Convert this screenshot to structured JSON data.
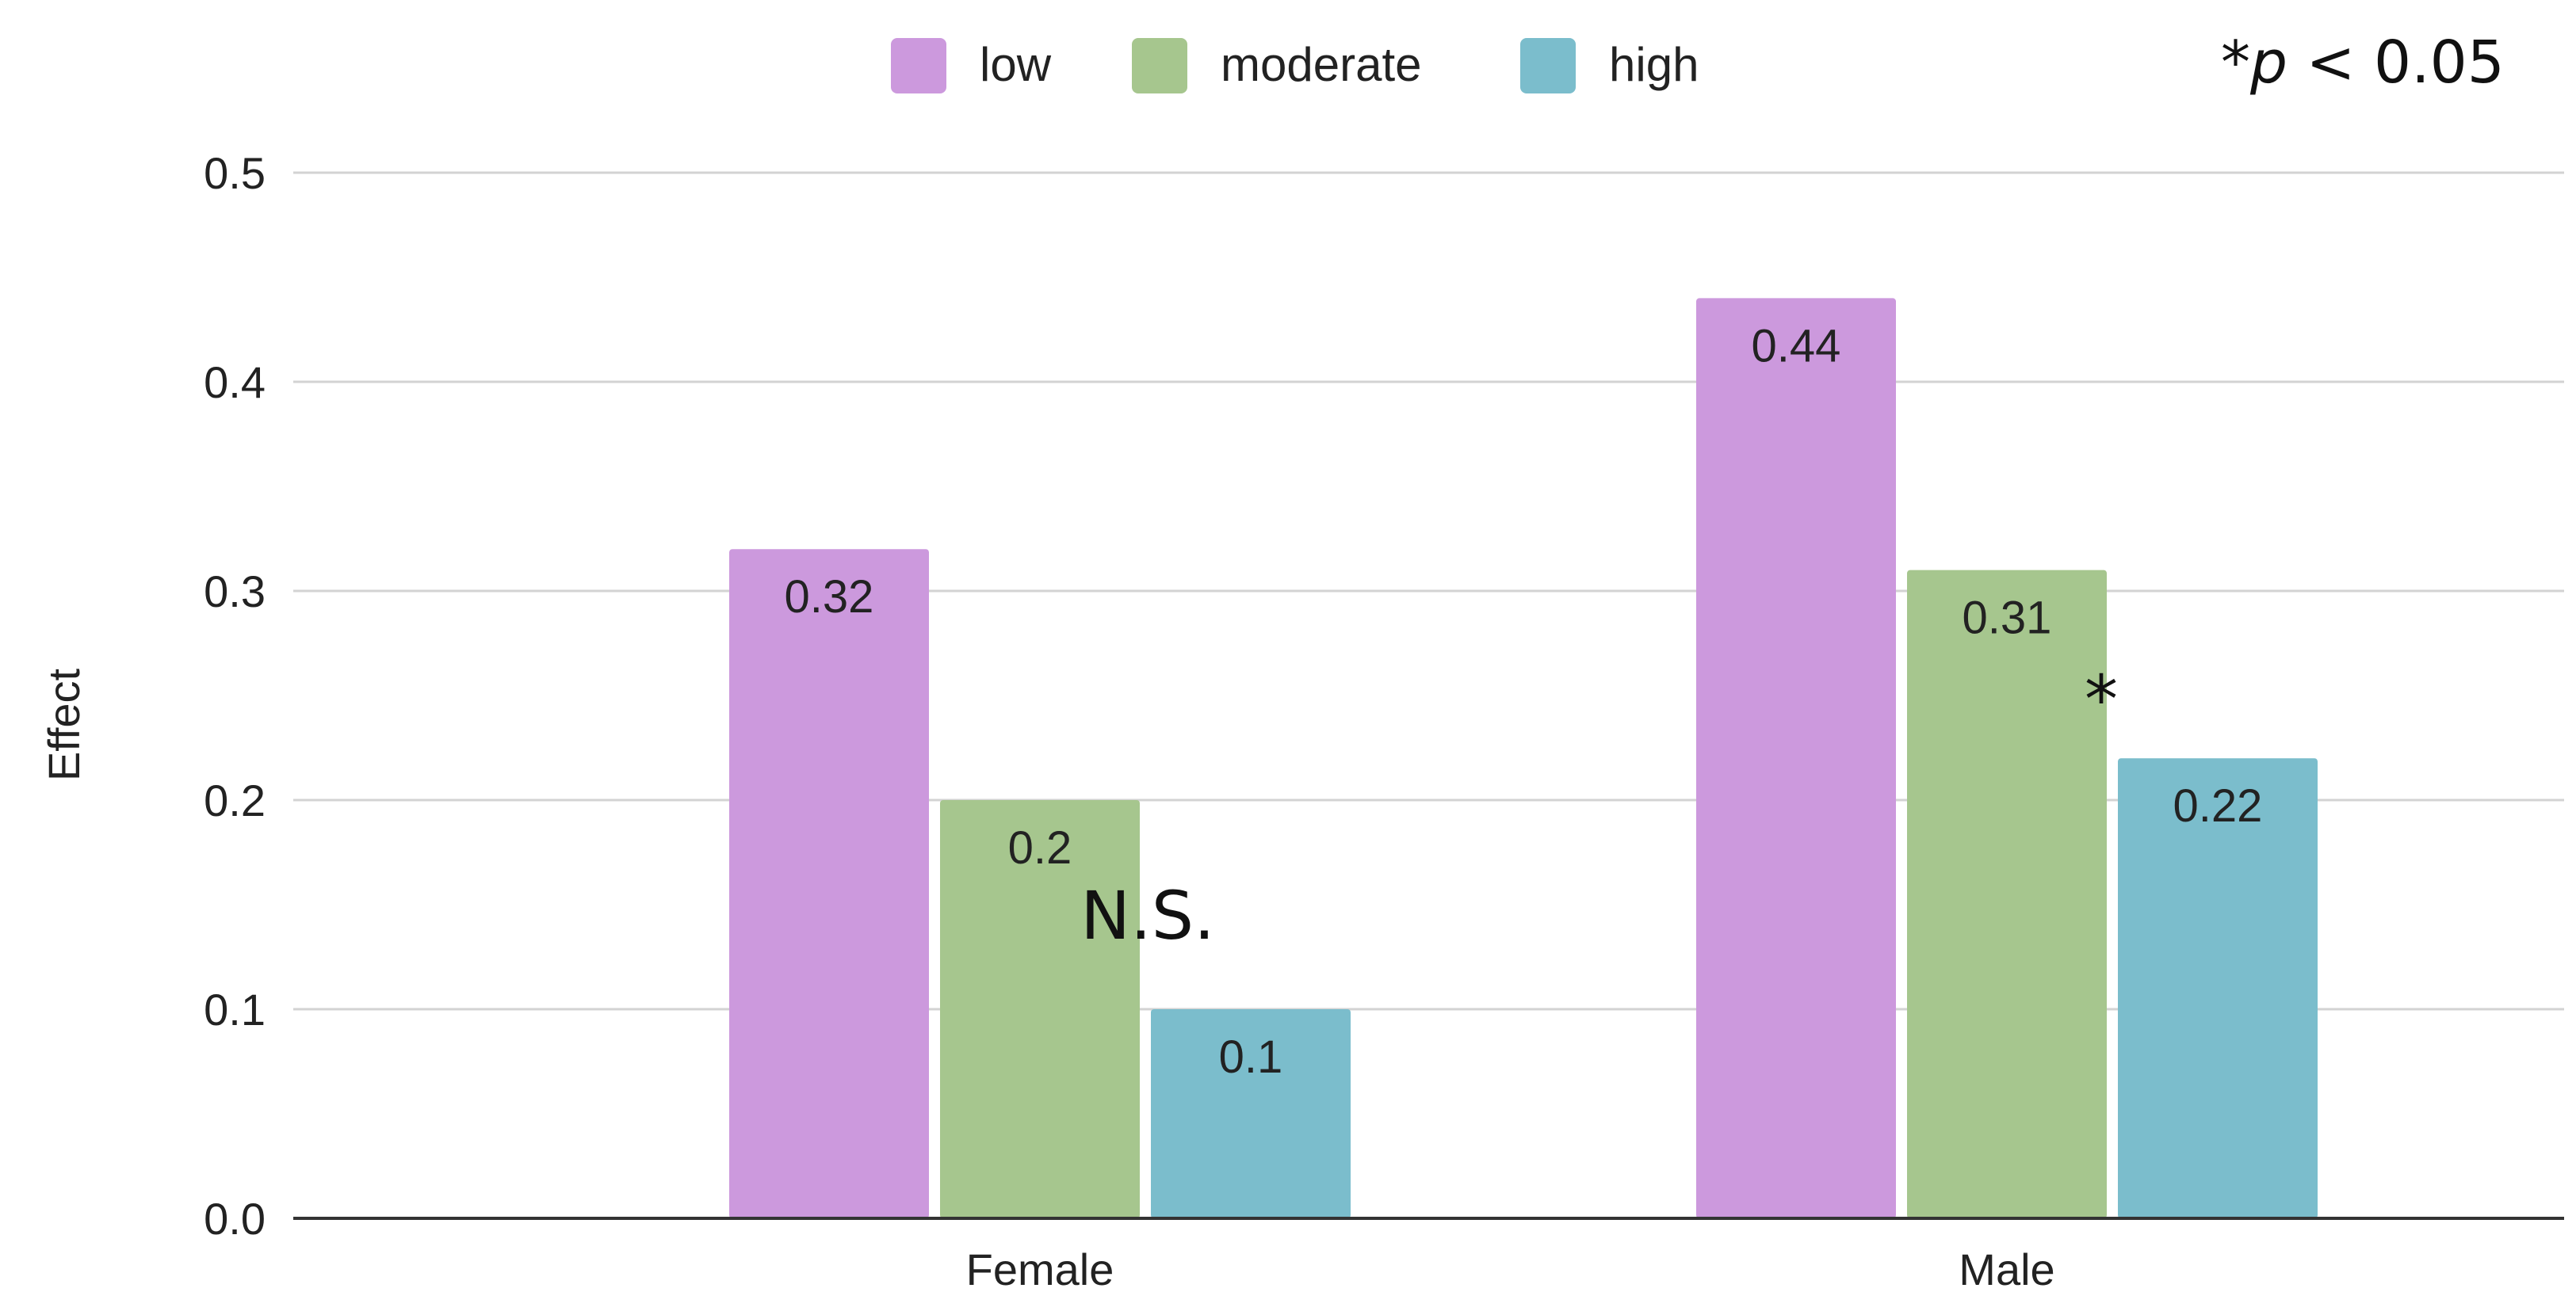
{
  "chart_data": {
    "type": "bar",
    "title": "",
    "xlabel": "",
    "ylabel": "Effect",
    "ylim": [
      0,
      0.5
    ],
    "yticks": [
      "0.0",
      "0.1",
      "0.2",
      "0.3",
      "0.4",
      "0.5"
    ],
    "grid": true,
    "legend_position": "top",
    "categories": [
      "Female",
      "Male"
    ],
    "series": [
      {
        "name": "low",
        "color": "#cc99dd",
        "values": [
          0.32,
          0.44
        ],
        "labels": [
          "0.32",
          "0.44"
        ]
      },
      {
        "name": "moderate",
        "color": "#a6c68e",
        "values": [
          0.2,
          0.31
        ],
        "labels": [
          "0.2",
          "0.31"
        ]
      },
      {
        "name": "high",
        "color": "#7bbdcc",
        "values": [
          0.1,
          0.22
        ],
        "labels": [
          "0.1",
          "0.22"
        ]
      }
    ],
    "annotations": {
      "significance_note_prefix": "*",
      "significance_note_var": "p",
      "significance_note_suffix": " < 0.05",
      "female_high_marker": "N.S.",
      "male_high_marker": "*"
    }
  }
}
